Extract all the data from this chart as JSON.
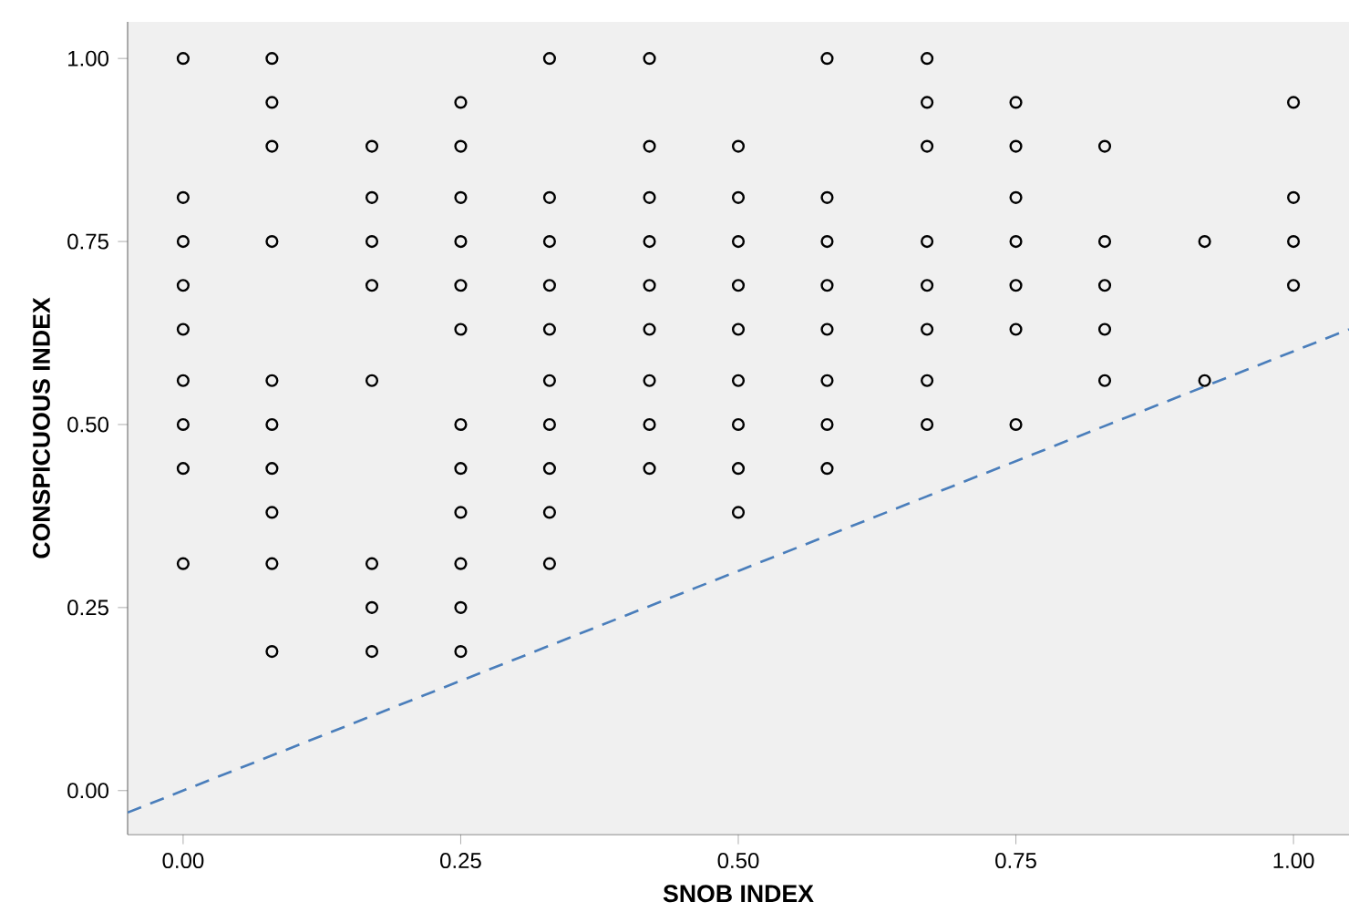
{
  "chart_data": {
    "type": "scatter",
    "xlabel": "SNOB INDEX",
    "ylabel": "CONSPICUOUS INDEX",
    "xlim": [
      -0.05,
      1.05
    ],
    "ylim": [
      -0.06,
      1.05
    ],
    "xticks": [
      {
        "value": 0,
        "label": "0.00"
      },
      {
        "value": 0.25,
        "label": "0.25"
      },
      {
        "value": 0.5,
        "label": "0.50"
      },
      {
        "value": 0.75,
        "label": "0.75"
      },
      {
        "value": 1,
        "label": "1.00"
      }
    ],
    "yticks": [
      {
        "value": 0,
        "label": "0.00"
      },
      {
        "value": 0.25,
        "label": "0.25"
      },
      {
        "value": 0.5,
        "label": "0.50"
      },
      {
        "value": 0.75,
        "label": "0.75"
      },
      {
        "value": 1,
        "label": "1.00"
      }
    ],
    "grid": false,
    "series": [
      {
        "color": "#000000",
        "marker": "circle",
        "x": [
          0,
          0,
          0,
          0,
          0,
          0,
          0,
          0,
          0,
          0.08,
          0.08,
          0.08,
          0.08,
          0.08,
          0.08,
          0.08,
          0.08,
          0.08,
          0.08,
          0.17,
          0.17,
          0.17,
          0.17,
          0.17,
          0.17,
          0.17,
          0.17,
          0.25,
          0.25,
          0.25,
          0.25,
          0.25,
          0.25,
          0.25,
          0.25,
          0.25,
          0.25,
          0.25,
          0.25,
          0.33,
          0.33,
          0.33,
          0.33,
          0.33,
          0.33,
          0.33,
          0.33,
          0.33,
          0.33,
          0.42,
          0.42,
          0.42,
          0.42,
          0.42,
          0.42,
          0.42,
          0.42,
          0.42,
          0.5,
          0.5,
          0.5,
          0.5,
          0.5,
          0.5,
          0.5,
          0.5,
          0.5,
          0.58,
          0.58,
          0.58,
          0.58,
          0.58,
          0.58,
          0.58,
          0.58,
          0.67,
          0.67,
          0.67,
          0.67,
          0.67,
          0.67,
          0.67,
          0.67,
          0.75,
          0.75,
          0.75,
          0.75,
          0.75,
          0.75,
          0.75,
          0.83,
          0.83,
          0.83,
          0.83,
          0.83,
          0.92,
          0.92,
          1,
          1,
          1,
          1
        ],
        "values": [
          1.0,
          0.81,
          0.75,
          0.69,
          0.63,
          0.56,
          0.5,
          0.44,
          0.31,
          1.0,
          0.94,
          0.88,
          0.75,
          0.56,
          0.5,
          0.44,
          0.38,
          0.31,
          0.19,
          0.88,
          0.81,
          0.75,
          0.69,
          0.56,
          0.31,
          0.25,
          0.19,
          0.94,
          0.88,
          0.81,
          0.75,
          0.69,
          0.63,
          0.5,
          0.44,
          0.38,
          0.31,
          0.25,
          0.19,
          1.0,
          0.81,
          0.75,
          0.69,
          0.63,
          0.56,
          0.5,
          0.44,
          0.38,
          0.31,
          1.0,
          0.88,
          0.81,
          0.75,
          0.69,
          0.63,
          0.56,
          0.5,
          0.44,
          0.88,
          0.81,
          0.75,
          0.69,
          0.63,
          0.56,
          0.5,
          0.44,
          0.38,
          1.0,
          0.81,
          0.75,
          0.69,
          0.63,
          0.56,
          0.5,
          0.44,
          1.0,
          0.94,
          0.88,
          0.75,
          0.69,
          0.63,
          0.56,
          0.5,
          0.94,
          0.88,
          0.81,
          0.75,
          0.69,
          0.63,
          0.5,
          0.88,
          0.75,
          0.69,
          0.63,
          0.56,
          0.75,
          0.56,
          0.94,
          0.81,
          0.75,
          0.69
        ]
      },
      {
        "type": "line",
        "color": "#4a7ebb",
        "line_style": "dashed",
        "marker": "none",
        "x": [
          -0.05,
          1.05
        ],
        "values": [
          -0.03,
          0.63
        ]
      }
    ]
  }
}
